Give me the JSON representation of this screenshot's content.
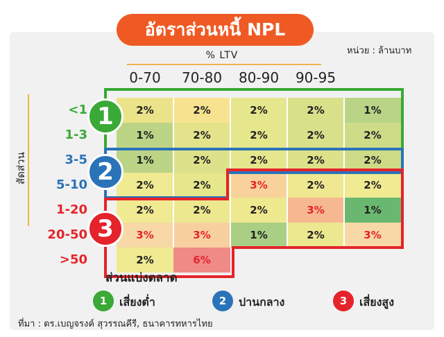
{
  "chart_data": {
    "type": "heatmap",
    "title": "อัตราส่วนหนี้ NPL",
    "unit": "หน่วย : ล้านบาท",
    "xlabel": "% LTV",
    "ylabel": "สัดส่วน",
    "xfooter": "ส่วนแบ่งตลาด",
    "source": "ที่มา : ดร.เบญจรงค์ สุวรรณคีรี, ธนาคารทหารไทย",
    "columns": [
      "0-70",
      "70-80",
      "80-90",
      "90-95",
      ""
    ],
    "rows": [
      {
        "label": "<1",
        "group": 1,
        "cells": [
          {
            "v": "2%",
            "c": "#ebe38a"
          },
          {
            "v": "2%",
            "c": "#f7e38f"
          },
          {
            "v": "2%",
            "c": "#e6e68c"
          },
          {
            "v": "2%",
            "c": "#d9e08a"
          },
          {
            "v": "1%",
            "c": "#b9d487"
          }
        ]
      },
      {
        "label": "1-3",
        "group": 1,
        "cells": [
          {
            "v": "1%",
            "c": "#bcd486"
          },
          {
            "v": "2%",
            "c": "#e2e38a"
          },
          {
            "v": "2%",
            "c": "#e6e68c"
          },
          {
            "v": "2%",
            "c": "#d9e08a"
          },
          {
            "v": "2%",
            "c": "#cedc88"
          }
        ]
      },
      {
        "label": "3-5",
        "group": 2,
        "cells": [
          {
            "v": "1%",
            "c": "#bcd486"
          },
          {
            "v": "2%",
            "c": "#dde28a"
          },
          {
            "v": "2%",
            "c": "#e6e68c"
          },
          {
            "v": "2%",
            "c": "#dde28a"
          },
          {
            "v": "2%",
            "c": "#cedc88"
          }
        ]
      },
      {
        "label": "5-10",
        "group": 2,
        "cells": [
          {
            "v": "2%",
            "c": "#f0ea92"
          },
          {
            "v": "2%",
            "c": "#e6e68c"
          },
          {
            "v": "3%",
            "c": "#f8d29a",
            "hi": true
          },
          {
            "v": "2%",
            "c": "#efe890"
          },
          {
            "v": "2%",
            "c": "#f0ea92"
          }
        ]
      },
      {
        "label": "1-20",
        "group": 3,
        "cells": [
          {
            "v": "2%",
            "c": "#f0ea92"
          },
          {
            "v": "2%",
            "c": "#ece88f"
          },
          {
            "v": "2%",
            "c": "#eee88f"
          },
          {
            "v": "3%",
            "c": "#f6b890",
            "hi": true
          },
          {
            "v": "1%",
            "c": "#6ab86f"
          }
        ]
      },
      {
        "label": "20-50",
        "group": 3,
        "cells": [
          {
            "v": "3%",
            "c": "#f8d8a6",
            "hi": true
          },
          {
            "v": "3%",
            "c": "#f8d0a0",
            "hi": true
          },
          {
            "v": "1%",
            "c": "#a8cf84"
          },
          {
            "v": "2%",
            "c": "#ece88f"
          },
          {
            "v": "3%",
            "c": "#f8d8a6",
            "hi": true
          }
        ]
      },
      {
        "label": ">50",
        "group": 3,
        "cells": [
          {
            "v": "2%",
            "c": "#f0ea92"
          },
          {
            "v": "6%",
            "c": "#ef8a86",
            "hi": true
          }
        ]
      }
    ],
    "legend": [
      {
        "num": "1",
        "label": "เสี่ยงต่ำ",
        "color": "#3aa935"
      },
      {
        "num": "2",
        "label": "ปานกลาง",
        "color": "#2a73b8"
      },
      {
        "num": "3",
        "label": "เสี่ยงสูง",
        "color": "#e5232a"
      }
    ],
    "colors": {
      "group1": "#3aa935",
      "group2": "#2a73b8",
      "group3": "#e5232a",
      "title_bg": "#ef5a24"
    }
  }
}
